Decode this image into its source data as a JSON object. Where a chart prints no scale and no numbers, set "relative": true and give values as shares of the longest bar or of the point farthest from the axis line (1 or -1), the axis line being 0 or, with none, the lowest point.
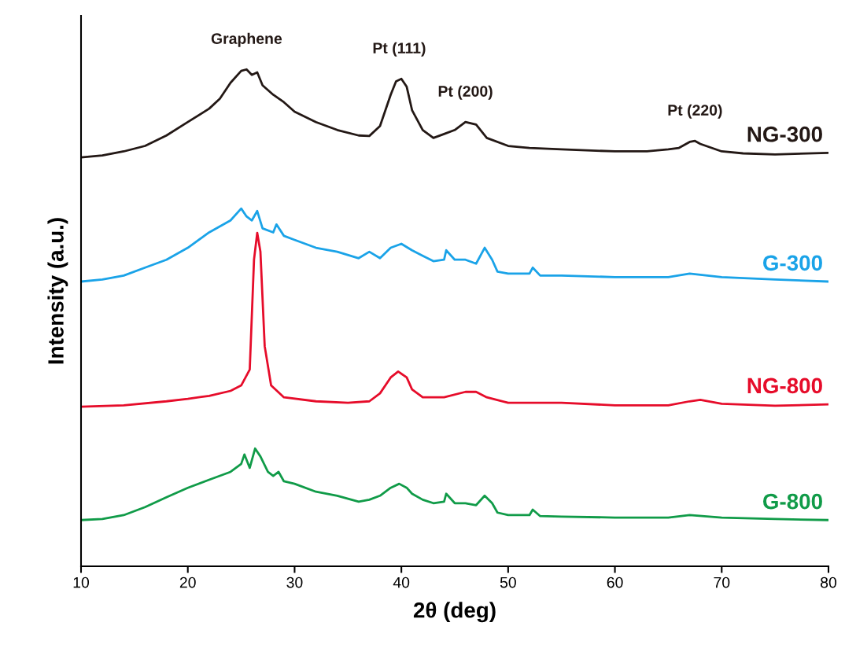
{
  "chart_data": {
    "type": "line",
    "relative": true,
    "xlabel": "2θ (deg)",
    "ylabel": "Intensity (a.u.)",
    "xlim": [
      10,
      80
    ],
    "xticks": [
      10,
      20,
      30,
      40,
      50,
      60,
      70,
      80
    ],
    "tick_labels": "x",
    "grid": false,
    "legend": false,
    "marker": "none",
    "line_style": "solid",
    "annotations": [
      {
        "text": "Graphene",
        "x": 25.5,
        "y": 1.0
      },
      {
        "text": "Pt (111)",
        "x": 39.8,
        "y": 0.981
      },
      {
        "text": "Pt (200)",
        "x": 46,
        "y": 0.894
      },
      {
        "text": "Pt (220)",
        "x": 67.5,
        "y": 0.856
      }
    ],
    "series": [
      {
        "name": "NG-300",
        "color": "#231815",
        "x": [
          10,
          12,
          14,
          16,
          18,
          20,
          22,
          23,
          24,
          25,
          25.5,
          26,
          26.5,
          27,
          28,
          29,
          30,
          32,
          34,
          36,
          37,
          38,
          39,
          39.5,
          40,
          40.5,
          41,
          42,
          43,
          44,
          45,
          46,
          47,
          48,
          50,
          52,
          55,
          60,
          63,
          65,
          66,
          67,
          67.5,
          68,
          70,
          72,
          75,
          80
        ],
        "values": [
          0.823,
          0.827,
          0.835,
          0.846,
          0.867,
          0.894,
          0.921,
          0.941,
          0.973,
          0.997,
          1.0,
          0.989,
          0.994,
          0.968,
          0.949,
          0.934,
          0.915,
          0.894,
          0.878,
          0.867,
          0.866,
          0.886,
          0.949,
          0.976,
          0.981,
          0.965,
          0.918,
          0.878,
          0.862,
          0.87,
          0.878,
          0.894,
          0.889,
          0.862,
          0.846,
          0.842,
          0.839,
          0.835,
          0.835,
          0.839,
          0.842,
          0.854,
          0.856,
          0.85,
          0.835,
          0.831,
          0.829,
          0.832
        ]
      },
      {
        "name": "G-300",
        "color": "#1aa3e8",
        "x": [
          10,
          12,
          14,
          16,
          18,
          20,
          22,
          24,
          25,
          25.5,
          26,
          26.5,
          27,
          28,
          28.3,
          29,
          30,
          32,
          34,
          36,
          37,
          38,
          39,
          40,
          41,
          42,
          43,
          44,
          44.2,
          45,
          46,
          47,
          47.8,
          48.5,
          49,
          50,
          52,
          52.3,
          53,
          55,
          60,
          65,
          67,
          70,
          75,
          80
        ],
        "values": [
          0.573,
          0.577,
          0.585,
          0.601,
          0.617,
          0.641,
          0.672,
          0.696,
          0.72,
          0.704,
          0.696,
          0.715,
          0.68,
          0.672,
          0.688,
          0.665,
          0.657,
          0.641,
          0.633,
          0.62,
          0.633,
          0.62,
          0.641,
          0.649,
          0.636,
          0.625,
          0.614,
          0.617,
          0.636,
          0.617,
          0.617,
          0.609,
          0.641,
          0.617,
          0.593,
          0.589,
          0.589,
          0.601,
          0.585,
          0.585,
          0.582,
          0.582,
          0.589,
          0.582,
          0.577,
          0.573
        ]
      },
      {
        "name": "NG-800",
        "color": "#e60c2a",
        "x": [
          10,
          14,
          18,
          20,
          22,
          24,
          25,
          25.8,
          26.2,
          26.5,
          26.8,
          27.2,
          27.8,
          29,
          32,
          35,
          37,
          38,
          39,
          39.7,
          40.5,
          41,
          42,
          44,
          46,
          47,
          48,
          50,
          55,
          60,
          65,
          67,
          68,
          70,
          75,
          80
        ],
        "values": [
          0.321,
          0.324,
          0.332,
          0.337,
          0.343,
          0.353,
          0.364,
          0.396,
          0.617,
          0.671,
          0.633,
          0.443,
          0.364,
          0.34,
          0.332,
          0.329,
          0.332,
          0.348,
          0.38,
          0.392,
          0.38,
          0.356,
          0.34,
          0.34,
          0.351,
          0.351,
          0.34,
          0.329,
          0.329,
          0.324,
          0.324,
          0.332,
          0.335,
          0.327,
          0.323,
          0.326
        ]
      },
      {
        "name": "G-800",
        "color": "#109b48",
        "x": [
          10,
          12,
          14,
          16,
          18,
          20,
          22,
          24,
          25,
          25.3,
          25.8,
          26.3,
          26.8,
          27.5,
          28,
          28.5,
          29,
          30,
          32,
          34,
          36,
          37,
          38,
          39,
          39.8,
          40.5,
          41,
          42,
          43,
          44,
          44.2,
          45,
          46,
          47,
          47.8,
          48.5,
          49,
          50,
          52,
          52.3,
          53,
          55,
          60,
          65,
          67,
          70,
          75,
          80
        ],
        "values": [
          0.093,
          0.095,
          0.103,
          0.119,
          0.139,
          0.158,
          0.174,
          0.19,
          0.206,
          0.225,
          0.198,
          0.237,
          0.221,
          0.19,
          0.182,
          0.19,
          0.171,
          0.166,
          0.15,
          0.142,
          0.13,
          0.134,
          0.142,
          0.158,
          0.166,
          0.158,
          0.146,
          0.134,
          0.127,
          0.13,
          0.146,
          0.127,
          0.127,
          0.123,
          0.142,
          0.127,
          0.108,
          0.103,
          0.103,
          0.114,
          0.101,
          0.1,
          0.098,
          0.098,
          0.103,
          0.098,
          0.095,
          0.093
        ]
      }
    ]
  }
}
